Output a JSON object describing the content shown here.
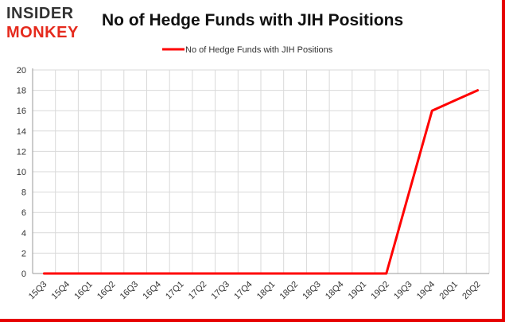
{
  "logo": {
    "line1": "INSIDER",
    "line2": "MONKEY"
  },
  "chart_data": {
    "type": "line",
    "title": "No of Hedge Funds with JIH Positions",
    "xlabel": "",
    "ylabel": "",
    "categories": [
      "15Q3",
      "15Q4",
      "16Q1",
      "16Q2",
      "16Q3",
      "16Q4",
      "17Q1",
      "17Q2",
      "17Q3",
      "17Q4",
      "18Q1",
      "18Q2",
      "18Q3",
      "18Q4",
      "19Q1",
      "19Q2",
      "19Q3",
      "19Q4",
      "20Q1",
      "20Q2"
    ],
    "series": [
      {
        "name": "No of Hedge Funds with JIH Positions",
        "color": "#ff0000",
        "values": [
          0,
          0,
          0,
          0,
          0,
          0,
          0,
          0,
          0,
          0,
          0,
          0,
          0,
          0,
          0,
          0,
          8,
          16,
          17,
          18
        ]
      }
    ],
    "ylim": [
      0,
      20
    ],
    "yticks": [
      0,
      2,
      4,
      6,
      8,
      10,
      12,
      14,
      16,
      18,
      20
    ],
    "grid": true,
    "legend": "top-center"
  }
}
